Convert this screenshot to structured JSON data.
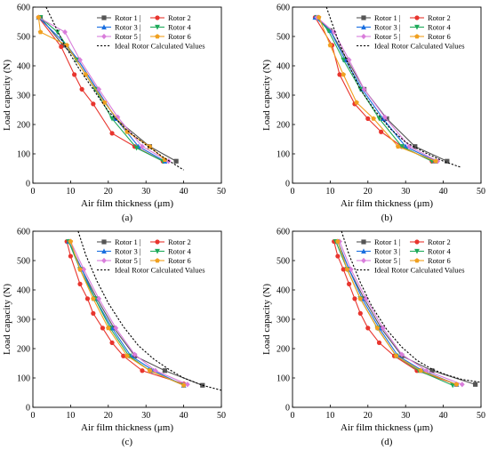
{
  "chart_data": [
    {
      "type": "line",
      "panel_label": "(a)",
      "xlabel": "Air film thickness (μm)",
      "ylabel": "Load capacity (N)",
      "xlim": [
        0,
        50
      ],
      "ylim": [
        0,
        600
      ],
      "xticks": [
        "0",
        "10",
        "20",
        "30",
        "40",
        "50"
      ],
      "yticks": [
        "0",
        "100",
        "200",
        "300",
        "400",
        "500",
        "600"
      ],
      "legend_position": "top-right",
      "series": [
        {
          "name": "Rotor 1",
          "color": "#555555",
          "marker": "square",
          "x": [
            2,
            8,
            12,
            17,
            22,
            31,
            38
          ],
          "y": [
            565,
            470,
            420,
            320,
            220,
            125,
            75
          ]
        },
        {
          "name": "Rotor 2",
          "color": "#e8352e",
          "marker": "circle",
          "x": [
            1.5,
            7.5,
            11,
            13,
            16,
            21,
            27,
            34.5
          ],
          "y": [
            565,
            465,
            370,
            320,
            270,
            170,
            125,
            75
          ]
        },
        {
          "name": "Rotor 3",
          "color": "#1a6fe0",
          "marker": "triangle-up",
          "x": [
            1.5,
            9,
            12,
            17,
            22,
            28,
            35
          ],
          "y": [
            565,
            470,
            420,
            320,
            220,
            125,
            75
          ]
        },
        {
          "name": "Rotor 4",
          "color": "#1faa5a",
          "marker": "triangle-down",
          "x": [
            2,
            6.5,
            11.5,
            16.5,
            21,
            27.5,
            34.5
          ],
          "y": [
            565,
            515,
            420,
            320,
            220,
            120,
            75
          ]
        },
        {
          "name": "Rotor 5",
          "color": "#d97ddb",
          "marker": "diamond",
          "x": [
            1.5,
            8.5,
            12.5,
            17.5,
            22.5,
            29,
            36
          ],
          "y": [
            565,
            515,
            420,
            320,
            225,
            125,
            75
          ]
        },
        {
          "name": "Rotor 6",
          "color": "#f0a020",
          "marker": "pentagon",
          "x": [
            1.5,
            2,
            9,
            14,
            19,
            25,
            31,
            35
          ],
          "y": [
            565,
            515,
            470,
            370,
            275,
            175,
            125,
            80
          ]
        },
        {
          "name": "Ideal Rotor Calculated Values",
          "color": "#000000",
          "dashed": true,
          "x": [
            3.5,
            5,
            8,
            12,
            16,
            20,
            25,
            30,
            35,
            40
          ],
          "y": [
            600,
            560,
            480,
            395,
            320,
            245,
            180,
            130,
            85,
            45
          ]
        }
      ]
    },
    {
      "type": "line",
      "panel_label": "(b)",
      "xlabel": "Air film thickness (μm)",
      "ylabel": "Load capacity (N)",
      "xlim": [
        0,
        50
      ],
      "ylim": [
        0,
        600
      ],
      "xticks": [
        "0",
        "10",
        "20",
        "30",
        "40",
        "50"
      ],
      "yticks": [
        "0",
        "100",
        "200",
        "300",
        "400",
        "500",
        "600"
      ],
      "legend_position": "top-right",
      "series": [
        {
          "name": "Rotor 1",
          "color": "#555555",
          "marker": "square",
          "x": [
            6.5,
            10,
            14.5,
            19,
            25,
            32.5,
            41
          ],
          "y": [
            565,
            520,
            420,
            320,
            220,
            125,
            75
          ]
        },
        {
          "name": "Rotor 2",
          "color": "#e8352e",
          "marker": "circle",
          "x": [
            6,
            10.5,
            12.5,
            16.5,
            20,
            23.5,
            29,
            37
          ],
          "y": [
            565,
            470,
            370,
            270,
            220,
            175,
            125,
            75
          ]
        },
        {
          "name": "Rotor 3",
          "color": "#1a6fe0",
          "marker": "triangle-up",
          "x": [
            6,
            10,
            14,
            18.5,
            24,
            30,
            38
          ],
          "y": [
            565,
            520,
            420,
            320,
            220,
            125,
            75
          ]
        },
        {
          "name": "Rotor 4",
          "color": "#1faa5a",
          "marker": "triangle-down",
          "x": [
            6.5,
            9.5,
            13.5,
            18,
            23,
            29,
            37
          ],
          "y": [
            565,
            520,
            420,
            320,
            220,
            125,
            75
          ]
        },
        {
          "name": "Rotor 5",
          "color": "#d97ddb",
          "marker": "diamond",
          "x": [
            6.5,
            11,
            15,
            19,
            24.5,
            31,
            38.5
          ],
          "y": [
            565,
            515,
            420,
            320,
            225,
            125,
            75
          ]
        },
        {
          "name": "Rotor 6",
          "color": "#f0a020",
          "marker": "pentagon",
          "x": [
            7,
            10,
            13.5,
            17,
            21.5,
            28,
            38
          ],
          "y": [
            565,
            470,
            370,
            275,
            220,
            125,
            75
          ]
        },
        {
          "name": "Ideal Rotor Calculated Values",
          "color": "#000000",
          "dashed": true,
          "x": [
            9,
            12,
            15,
            18,
            22,
            26,
            30,
            35,
            40,
            44.5
          ],
          "y": [
            600,
            490,
            400,
            320,
            245,
            185,
            140,
            105,
            75,
            55
          ]
        }
      ]
    },
    {
      "type": "line",
      "panel_label": "(c)",
      "xlabel": "Air film thickness (μm)",
      "ylabel": "Load capacity (N)",
      "xlim": [
        0,
        50
      ],
      "ylim": [
        0,
        600
      ],
      "xticks": [
        "0",
        "10",
        "20",
        "30",
        "40",
        "50"
      ],
      "yticks": [
        "0",
        "100",
        "200",
        "300",
        "400",
        "500",
        "600"
      ],
      "legend_position": "top-right",
      "series": [
        {
          "name": "Rotor 1",
          "color": "#555555",
          "marker": "square",
          "x": [
            9.5,
            13,
            17,
            21.5,
            27,
            35,
            45
          ],
          "y": [
            565,
            470,
            370,
            270,
            175,
            125,
            75
          ]
        },
        {
          "name": "Rotor 2",
          "color": "#e8352e",
          "marker": "circle",
          "x": [
            9,
            10,
            12.5,
            14.5,
            16,
            18.5,
            21,
            24,
            29,
            40
          ],
          "y": [
            565,
            515,
            420,
            370,
            320,
            270,
            220,
            175,
            125,
            80
          ]
        },
        {
          "name": "Rotor 3",
          "color": "#1a6fe0",
          "marker": "triangle-up",
          "x": [
            9.5,
            13,
            16.5,
            21,
            26,
            32,
            40
          ],
          "y": [
            565,
            470,
            370,
            270,
            175,
            125,
            75
          ]
        },
        {
          "name": "Rotor 4",
          "color": "#1faa5a",
          "marker": "triangle-down",
          "x": [
            9.5,
            12.5,
            16.5,
            20.5,
            25.5,
            31,
            40
          ],
          "y": [
            565,
            470,
            370,
            270,
            175,
            125,
            75
          ]
        },
        {
          "name": "Rotor 5",
          "color": "#d97ddb",
          "marker": "diamond",
          "x": [
            10,
            13.5,
            17.5,
            22,
            27,
            32.5,
            41
          ],
          "y": [
            565,
            470,
            370,
            270,
            180,
            125,
            78
          ]
        },
        {
          "name": "Rotor 6",
          "color": "#f0a020",
          "marker": "pentagon",
          "x": [
            10,
            12.5,
            16,
            20,
            25,
            31,
            40
          ],
          "y": [
            565,
            470,
            370,
            270,
            175,
            125,
            75
          ]
        },
        {
          "name": "Ideal Rotor Calculated Values",
          "color": "#000000",
          "dashed": true,
          "x": [
            12,
            14,
            17,
            20,
            24,
            28,
            32,
            36,
            40,
            45,
            50
          ],
          "y": [
            600,
            520,
            430,
            355,
            275,
            210,
            165,
            130,
            100,
            75,
            58
          ]
        }
      ]
    },
    {
      "type": "line",
      "panel_label": "(d)",
      "xlabel": "Air film thickness (μm)",
      "ylabel": "Load capacity (N)",
      "xlim": [
        0,
        50
      ],
      "ylim": [
        0,
        600
      ],
      "xticks": [
        "0",
        "10",
        "20",
        "30",
        "40",
        "50"
      ],
      "yticks": [
        "0",
        "100",
        "200",
        "300",
        "400",
        "500",
        "600"
      ],
      "legend_position": "top-right",
      "series": [
        {
          "name": "Rotor 1",
          "color": "#555555",
          "marker": "square",
          "x": [
            12,
            15,
            19,
            23.5,
            29,
            37,
            48.5
          ],
          "y": [
            565,
            470,
            370,
            270,
            175,
            125,
            78
          ]
        },
        {
          "name": "Rotor 2",
          "color": "#e8352e",
          "marker": "circle",
          "x": [
            11,
            12,
            13.5,
            15,
            16.5,
            18,
            20,
            23,
            27,
            33,
            43.5
          ],
          "y": [
            565,
            515,
            470,
            420,
            370,
            320,
            270,
            220,
            175,
            125,
            78
          ]
        },
        {
          "name": "Rotor 3",
          "color": "#1a6fe0",
          "marker": "triangle-up",
          "x": [
            12,
            15,
            18.5,
            23,
            28,
            34.5,
            43.5
          ],
          "y": [
            565,
            470,
            370,
            270,
            175,
            125,
            78
          ]
        },
        {
          "name": "Rotor 4",
          "color": "#1faa5a",
          "marker": "triangle-down",
          "x": [
            11.5,
            14.5,
            18,
            22.5,
            27.5,
            33.5,
            42.5
          ],
          "y": [
            565,
            470,
            370,
            270,
            175,
            125,
            75
          ]
        },
        {
          "name": "Rotor 5",
          "color": "#d97ddb",
          "marker": "diamond",
          "x": [
            12.5,
            15.5,
            19.5,
            24,
            29,
            35.5,
            45
          ],
          "y": [
            565,
            470,
            370,
            270,
            180,
            125,
            78
          ]
        },
        {
          "name": "Rotor 6",
          "color": "#f0a020",
          "marker": "pentagon",
          "x": [
            12,
            14.5,
            18,
            22.5,
            27.5,
            34,
            43.5
          ],
          "y": [
            565,
            470,
            370,
            270,
            175,
            125,
            78
          ]
        },
        {
          "name": "Ideal Rotor Calculated Values",
          "color": "#000000",
          "dashed": true,
          "x": [
            13,
            15,
            18,
            21,
            25,
            29,
            33,
            37,
            41,
            45,
            50
          ],
          "y": [
            600,
            520,
            425,
            345,
            265,
            205,
            160,
            130,
            110,
            95,
            85
          ]
        }
      ]
    }
  ]
}
